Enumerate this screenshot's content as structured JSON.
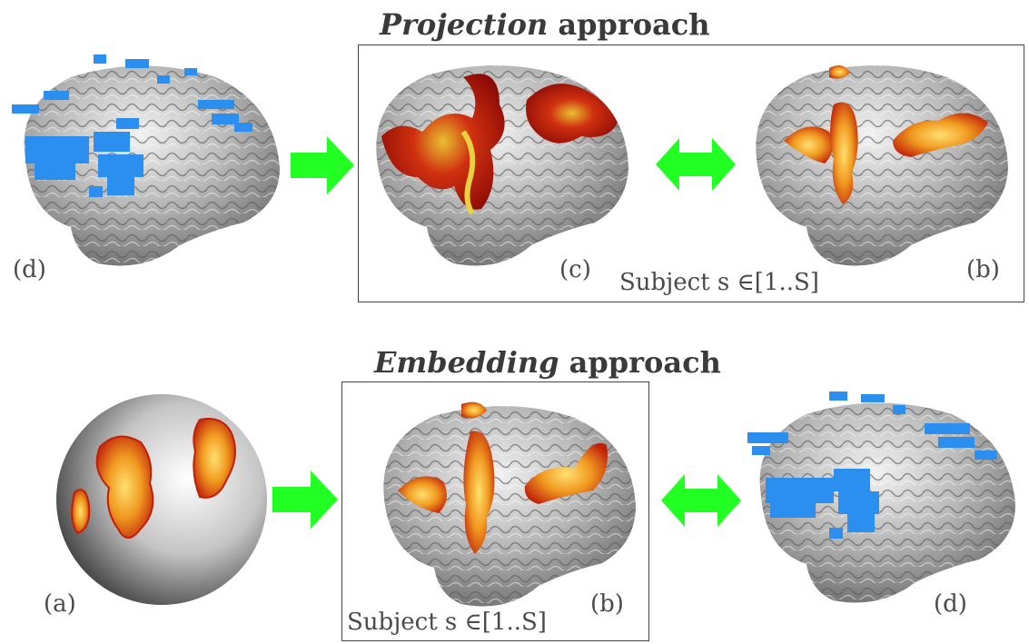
{
  "top_title": {
    "emph": "Projection",
    "rest": " approach"
  },
  "bottom_title": {
    "emph": "Embedding",
    "rest": " approach"
  },
  "labels": {
    "top_d": "(d)",
    "top_c": "(c)",
    "top_b": "(b)",
    "bottom_a": "(a)",
    "bottom_b": "(b)",
    "bottom_d": "(d)"
  },
  "subject_top": "Subject s ∈[1..S]",
  "subject_bottom": "Subject s ∈[1..S]",
  "colors": {
    "arrow": "#22ff22",
    "blob_blue": "#2b8ff0",
    "activation_red": "#c0180a",
    "activation_yellow": "#f0c020",
    "cortex": "#9a9a9a"
  }
}
